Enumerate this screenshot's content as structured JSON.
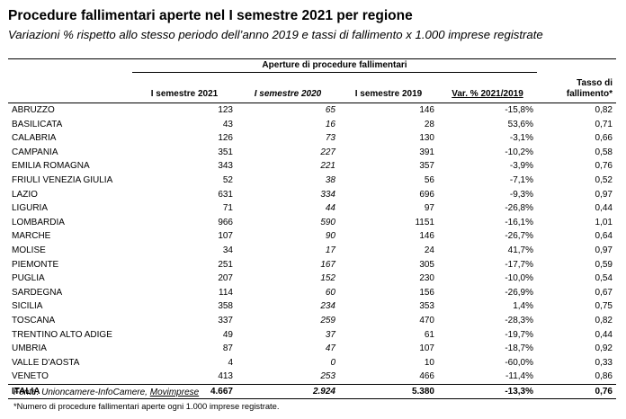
{
  "title": "Procedure fallimentari aperte nel I semestre 2021 per regione",
  "subtitle": "Variazioni % rispetto allo stesso periodo dell’anno 2019 e tassi di fallimento x 1.000 imprese registrate",
  "table": {
    "group_header": "Aperture di procedure fallimentari",
    "columns": [
      "I semestre 2021",
      "I semestre 2020",
      "I semestre 2019",
      "Var. % 2021/2019",
      "Tasso di fallimento*"
    ],
    "rows": [
      [
        "ABRUZZO",
        "123",
        "65",
        "146",
        "-15,8%",
        "0,82"
      ],
      [
        "BASILICATA",
        "43",
        "16",
        "28",
        "53,6%",
        "0,71"
      ],
      [
        "CALABRIA",
        "126",
        "73",
        "130",
        "-3,1%",
        "0,66"
      ],
      [
        "CAMPANIA",
        "351",
        "227",
        "391",
        "-10,2%",
        "0,58"
      ],
      [
        "EMILIA ROMAGNA",
        "343",
        "221",
        "357",
        "-3,9%",
        "0,76"
      ],
      [
        "FRIULI VENEZIA GIULIA",
        "52",
        "38",
        "56",
        "-7,1%",
        "0,52"
      ],
      [
        "LAZIO",
        "631",
        "334",
        "696",
        "-9,3%",
        "0,97"
      ],
      [
        "LIGURIA",
        "71",
        "44",
        "97",
        "-26,8%",
        "0,44"
      ],
      [
        "LOMBARDIA",
        "966",
        "590",
        "1151",
        "-16,1%",
        "1,01"
      ],
      [
        "MARCHE",
        "107",
        "90",
        "146",
        "-26,7%",
        "0,64"
      ],
      [
        "MOLISE",
        "34",
        "17",
        "24",
        "41,7%",
        "0,97"
      ],
      [
        "PIEMONTE",
        "251",
        "167",
        "305",
        "-17,7%",
        "0,59"
      ],
      [
        "PUGLIA",
        "207",
        "152",
        "230",
        "-10,0%",
        "0,54"
      ],
      [
        "SARDEGNA",
        "114",
        "60",
        "156",
        "-26,9%",
        "0,67"
      ],
      [
        "SICILIA",
        "358",
        "234",
        "353",
        "1,4%",
        "0,75"
      ],
      [
        "TOSCANA",
        "337",
        "259",
        "470",
        "-28,3%",
        "0,82"
      ],
      [
        "TRENTINO ALTO ADIGE",
        "49",
        "37",
        "61",
        "-19,7%",
        "0,44"
      ],
      [
        "UMBRIA",
        "87",
        "47",
        "107",
        "-18,7%",
        "0,92"
      ],
      [
        "VALLE D'AOSTA",
        "4",
        "0",
        "10",
        "-60,0%",
        "0,33"
      ],
      [
        "VENETO",
        "413",
        "253",
        "466",
        "-11,4%",
        "0,86"
      ]
    ],
    "total": [
      "ITALIA",
      "4.667",
      "2.924",
      "5.380",
      "-13,3%",
      "0,76"
    ]
  },
  "source_prefix": "Fonte: Unioncamere-InfoCamere, ",
  "source_link": "Movimprese",
  "footnote": "*Numero di procedure fallimentari aperte ogni 1.000 imprese registrate."
}
